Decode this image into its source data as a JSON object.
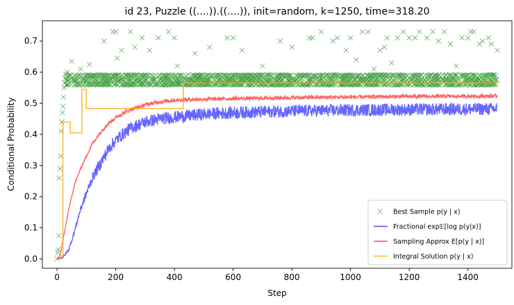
{
  "chart_data": {
    "type": "line",
    "title": "id 23, Puzzle ((....)).((....)), init=random, k=1250, time=318.20",
    "xlabel": "Step",
    "ylabel": "Conditional Probability",
    "xlim": [
      -50,
      1550
    ],
    "ylim": [
      -0.03,
      0.765
    ],
    "xticks": [
      0,
      200,
      400,
      600,
      800,
      1000,
      1200,
      1400
    ],
    "yticks": [
      0.0,
      0.1,
      0.2,
      0.3,
      0.4,
      0.5,
      0.6,
      0.7
    ],
    "grid": false,
    "legend_position": "bottom-right",
    "x_max": 1500,
    "series": [
      {
        "name": "Best Sample p(y | x)",
        "kind": "scatter",
        "marker": "x",
        "color": "#008000",
        "alpha": 0.45,
        "bands": [
          0.56,
          0.575,
          0.59
        ],
        "early_points": [
          [
            0,
            0.0
          ],
          [
            2,
            0.02
          ],
          [
            4,
            0.03
          ],
          [
            6,
            0.075
          ],
          [
            8,
            0.26
          ],
          [
            10,
            0.29
          ],
          [
            12,
            0.33
          ],
          [
            14,
            0.41
          ],
          [
            16,
            0.44
          ],
          [
            18,
            0.47
          ],
          [
            20,
            0.49
          ],
          [
            22,
            0.52
          ],
          [
            24,
            0.55
          ],
          [
            26,
            0.565
          ],
          [
            28,
            0.58
          ],
          [
            30,
            0.595
          ],
          [
            35,
            0.6
          ],
          [
            50,
            0.635
          ],
          [
            80,
            0.61
          ],
          [
            110,
            0.625
          ]
        ],
        "outliers": [
          [
            160,
            0.7
          ],
          [
            190,
            0.73
          ],
          [
            200,
            0.73
          ],
          [
            205,
            0.645
          ],
          [
            220,
            0.67
          ],
          [
            250,
            0.73
          ],
          [
            265,
            0.68
          ],
          [
            290,
            0.71
          ],
          [
            315,
            0.67
          ],
          [
            345,
            0.71
          ],
          [
            380,
            0.73
          ],
          [
            400,
            0.71
          ],
          [
            410,
            0.62
          ],
          [
            470,
            0.66
          ],
          [
            520,
            0.68
          ],
          [
            580,
            0.71
          ],
          [
            600,
            0.71
          ],
          [
            630,
            0.67
          ],
          [
            700,
            0.62
          ],
          [
            760,
            0.7
          ],
          [
            800,
            0.68
          ],
          [
            860,
            0.71
          ],
          [
            870,
            0.71
          ],
          [
            900,
            0.73
          ],
          [
            940,
            0.7
          ],
          [
            955,
            0.71
          ],
          [
            985,
            0.67
          ],
          [
            1000,
            0.71
          ],
          [
            1020,
            0.64
          ],
          [
            1040,
            0.73
          ],
          [
            1060,
            0.73
          ],
          [
            1080,
            0.61
          ],
          [
            1100,
            0.67
          ],
          [
            1115,
            0.68
          ],
          [
            1125,
            0.71
          ],
          [
            1140,
            0.63
          ],
          [
            1160,
            0.71
          ],
          [
            1180,
            0.73
          ],
          [
            1200,
            0.71
          ],
          [
            1220,
            0.71
          ],
          [
            1235,
            0.73
          ],
          [
            1260,
            0.71
          ],
          [
            1280,
            0.73
          ],
          [
            1300,
            0.7
          ],
          [
            1320,
            0.73
          ],
          [
            1340,
            0.69
          ],
          [
            1360,
            0.62
          ],
          [
            1380,
            0.71
          ],
          [
            1400,
            0.71
          ],
          [
            1410,
            0.73
          ],
          [
            1420,
            0.73
          ],
          [
            1440,
            0.69
          ],
          [
            1450,
            0.7
          ],
          [
            1470,
            0.71
          ],
          [
            1480,
            0.69
          ],
          [
            1500,
            0.67
          ]
        ]
      },
      {
        "name": "Fractional exp𝔼[log p(y|x)]",
        "kind": "line",
        "color": "#0000ff",
        "alpha": 0.6,
        "noise": 0.02,
        "points": [
          [
            0,
            0.0
          ],
          [
            20,
            0.005
          ],
          [
            40,
            0.03
          ],
          [
            60,
            0.09
          ],
          [
            80,
            0.16
          ],
          [
            100,
            0.21
          ],
          [
            120,
            0.26
          ],
          [
            150,
            0.31
          ],
          [
            180,
            0.36
          ],
          [
            210,
            0.39
          ],
          [
            250,
            0.42
          ],
          [
            300,
            0.44
          ],
          [
            350,
            0.45
          ],
          [
            400,
            0.455
          ],
          [
            450,
            0.46
          ],
          [
            500,
            0.465
          ],
          [
            600,
            0.47
          ],
          [
            800,
            0.475
          ],
          [
            1000,
            0.478
          ],
          [
            1200,
            0.48
          ],
          [
            1500,
            0.482
          ]
        ]
      },
      {
        "name": "Sampling Approx E[p(y | x)]",
        "kind": "line",
        "color": "#ff0000",
        "alpha": 0.6,
        "noise": 0.006,
        "points": [
          [
            0,
            0.0
          ],
          [
            10,
            0.01
          ],
          [
            20,
            0.06
          ],
          [
            40,
            0.16
          ],
          [
            60,
            0.24
          ],
          [
            80,
            0.29
          ],
          [
            100,
            0.33
          ],
          [
            120,
            0.37
          ],
          [
            150,
            0.41
          ],
          [
            180,
            0.44
          ],
          [
            210,
            0.46
          ],
          [
            250,
            0.48
          ],
          [
            300,
            0.495
          ],
          [
            350,
            0.505
          ],
          [
            400,
            0.51
          ],
          [
            450,
            0.512
          ],
          [
            600,
            0.515
          ],
          [
            800,
            0.518
          ],
          [
            1000,
            0.52
          ],
          [
            1200,
            0.522
          ],
          [
            1500,
            0.523
          ]
        ]
      },
      {
        "name": "Integral Solution p(y | x)",
        "kind": "step",
        "color": "#ffa500",
        "alpha": 0.8,
        "points": [
          [
            0,
            0.0
          ],
          [
            15,
            0.0
          ],
          [
            15,
            0.01
          ],
          [
            20,
            0.01
          ],
          [
            20,
            0.44
          ],
          [
            45,
            0.44
          ],
          [
            45,
            0.405
          ],
          [
            85,
            0.405
          ],
          [
            85,
            0.545
          ],
          [
            100,
            0.545
          ],
          [
            100,
            0.483
          ],
          [
            430,
            0.483
          ],
          [
            430,
            0.565
          ],
          [
            1500,
            0.565
          ]
        ]
      }
    ]
  }
}
